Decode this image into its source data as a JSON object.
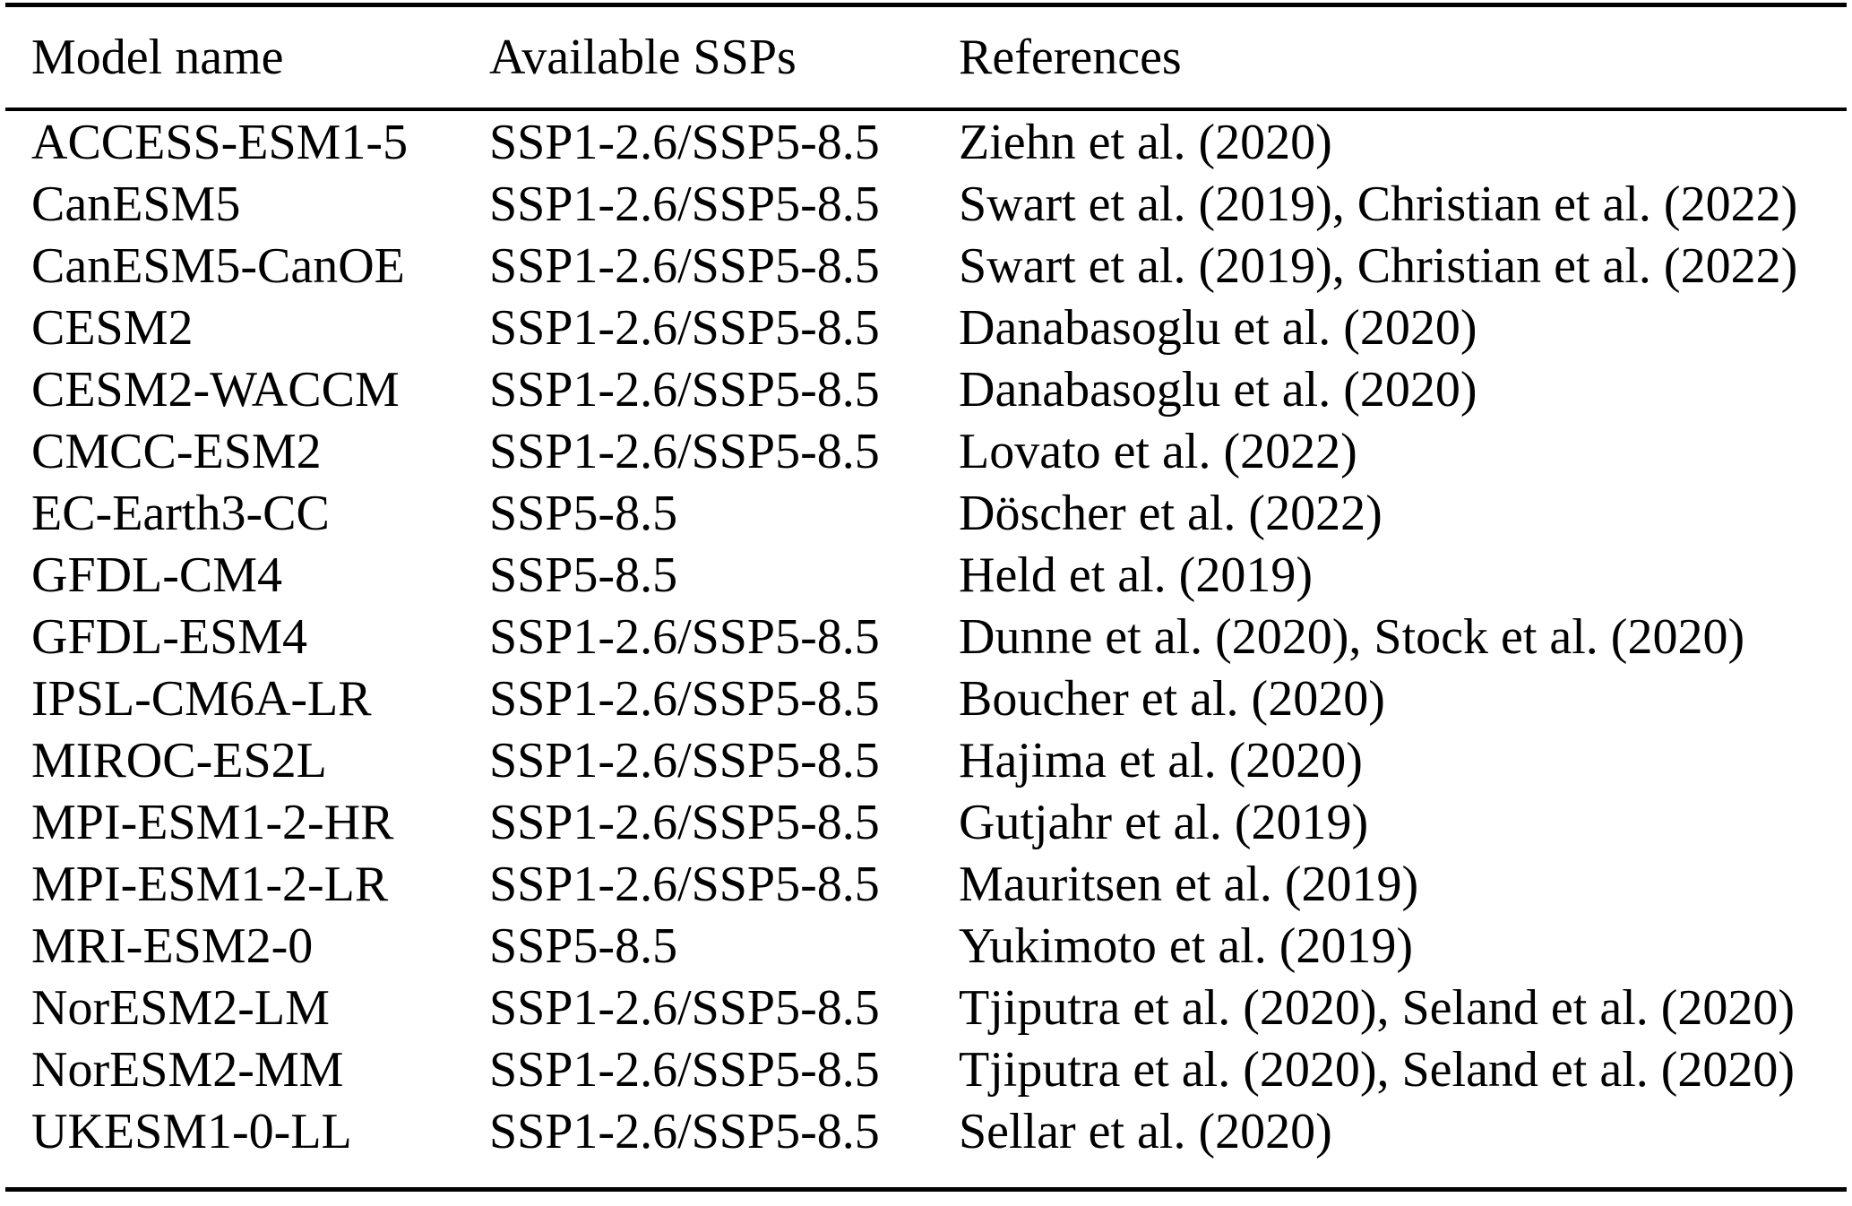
{
  "table": {
    "columns": [
      "Model name",
      "Available SSPs",
      "References"
    ],
    "rows": [
      {
        "model": "ACCESS-ESM1-5",
        "ssps": "SSP1-2.6/SSP5-8.5",
        "references": "Ziehn et al. (2020)"
      },
      {
        "model": "CanESM5",
        "ssps": "SSP1-2.6/SSP5-8.5",
        "references": "Swart et al. (2019), Christian et al. (2022)"
      },
      {
        "model": "CanESM5-CanOE",
        "ssps": "SSP1-2.6/SSP5-8.5",
        "references": "Swart et al. (2019), Christian et al. (2022)"
      },
      {
        "model": "CESM2",
        "ssps": "SSP1-2.6/SSP5-8.5",
        "references": "Danabasoglu et al. (2020)"
      },
      {
        "model": "CESM2-WACCM",
        "ssps": "SSP1-2.6/SSP5-8.5",
        "references": "Danabasoglu et al. (2020)"
      },
      {
        "model": "CMCC-ESM2",
        "ssps": "SSP1-2.6/SSP5-8.5",
        "references": "Lovato et al. (2022)"
      },
      {
        "model": "EC-Earth3-CC",
        "ssps": "SSP5-8.5",
        "references": "Döscher et al. (2022)"
      },
      {
        "model": "GFDL-CM4",
        "ssps": "SSP5-8.5",
        "references": "Held et al. (2019)"
      },
      {
        "model": "GFDL-ESM4",
        "ssps": "SSP1-2.6/SSP5-8.5",
        "references": "Dunne et al. (2020), Stock et al. (2020)"
      },
      {
        "model": "IPSL-CM6A-LR",
        "ssps": "SSP1-2.6/SSP5-8.5",
        "references": "Boucher et al. (2020)"
      },
      {
        "model": "MIROC-ES2L",
        "ssps": "SSP1-2.6/SSP5-8.5",
        "references": "Hajima et al. (2020)"
      },
      {
        "model": "MPI-ESM1-2-HR",
        "ssps": "SSP1-2.6/SSP5-8.5",
        "references": "Gutjahr et al. (2019)"
      },
      {
        "model": "MPI-ESM1-2-LR",
        "ssps": "SSP1-2.6/SSP5-8.5",
        "references": "Mauritsen et al. (2019)"
      },
      {
        "model": "MRI-ESM2-0",
        "ssps": "SSP5-8.5",
        "references": "Yukimoto et al. (2019)"
      },
      {
        "model": "NorESM2-LM",
        "ssps": "SSP1-2.6/SSP5-8.5",
        "references": "Tjiputra et al. (2020), Seland et al. (2020)"
      },
      {
        "model": "NorESM2-MM",
        "ssps": "SSP1-2.6/SSP5-8.5",
        "references": "Tjiputra et al. (2020), Seland et al. (2020)"
      },
      {
        "model": "UKESM1-0-LL",
        "ssps": "SSP1-2.6/SSP5-8.5",
        "references": "Sellar et al. (2020)"
      }
    ]
  }
}
